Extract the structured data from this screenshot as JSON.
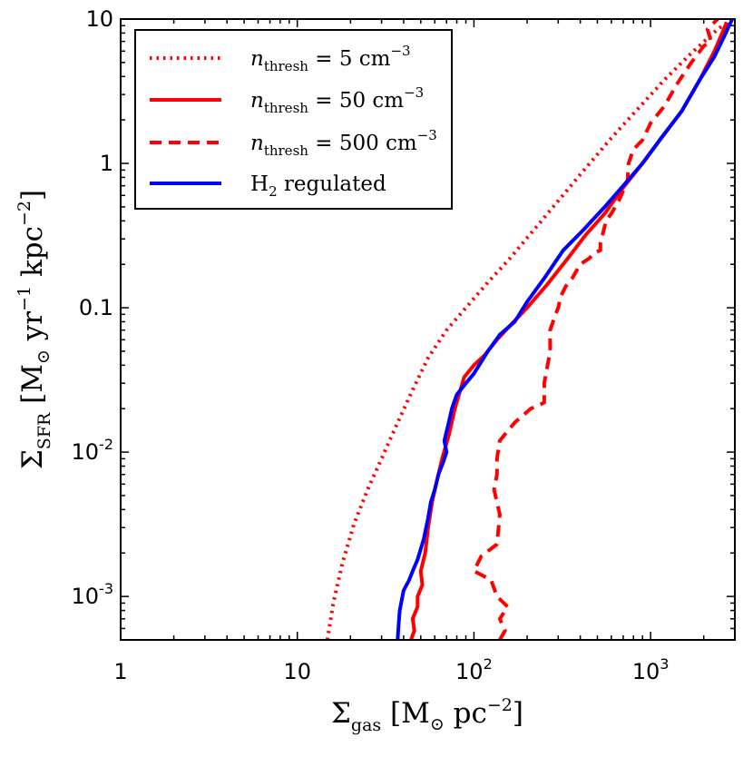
{
  "chart_data": {
    "type": "line",
    "title": "",
    "xscale": "log",
    "yscale": "log",
    "xlim": [
      1,
      3000
    ],
    "ylim": [
      0.0005,
      10
    ],
    "xlabel": {
      "symbol": "Σ",
      "sub": "gas",
      "unit": "[M",
      "sun": "⊙",
      "unit2": " pc",
      "exp": "−2",
      "close": "]"
    },
    "ylabel": {
      "symbol": "Σ",
      "sub": "SFR",
      "unit": "[M",
      "sun": "⊙",
      "unit2": " yr",
      "exp1": "−1",
      "unit3": " kpc",
      "exp2": "−2",
      "close": "]"
    },
    "xticks": [
      {
        "value": 1,
        "label": "1"
      },
      {
        "value": 10,
        "label": "10"
      },
      {
        "value": 100,
        "base": "10",
        "exp": "2"
      },
      {
        "value": 1000,
        "base": "10",
        "exp": "3"
      }
    ],
    "yticks": [
      {
        "value": 0.001,
        "base": "10",
        "exp": "-3"
      },
      {
        "value": 0.01,
        "base": "10",
        "exp": "-2"
      },
      {
        "value": 0.1,
        "label": "0.1"
      },
      {
        "value": 1,
        "label": "1"
      },
      {
        "value": 10,
        "label": "10"
      }
    ],
    "legend_position": "top-left",
    "series": [
      {
        "name": "n_thresh = 5 cm^-3",
        "legend": {
          "n": "n",
          "sub": "thresh",
          "eq": " = 5 cm",
          "exp": "−3"
        },
        "color": "#ff0000",
        "style": "dotted",
        "x": [
          14.8,
          16.0,
          18.0,
          21.0,
          25.0,
          30.0,
          37.0,
          45.0,
          55.0,
          70.0,
          90.0,
          120.0,
          160.0,
          220.0,
          300.0,
          420.0,
          600.0,
          850.0,
          1200.0,
          1700.0,
          2400.0,
          2900.0
        ],
        "y": [
          0.0005,
          0.0009,
          0.0017,
          0.0032,
          0.0055,
          0.009,
          0.016,
          0.027,
          0.045,
          0.07,
          0.1,
          0.15,
          0.22,
          0.35,
          0.55,
          0.9,
          1.5,
          2.4,
          3.8,
          5.8,
          8.5,
          10.0
        ]
      },
      {
        "name": "n_thresh = 50 cm^-3",
        "legend": {
          "n": "n",
          "sub": "thresh",
          "eq": " = 50 cm",
          "exp": "−3"
        },
        "color": "#ff0000",
        "style": "solid",
        "x": [
          44.0,
          46.0,
          45.0,
          48.0,
          48.0,
          51.0,
          50.0,
          53.0,
          55.0,
          58.0,
          62.0,
          66.0,
          72.0,
          78.0,
          88.0,
          100.0,
          115.0,
          135.0,
          160.0,
          200.0,
          260.0,
          340.0,
          430.0,
          550.0,
          700.0,
          900.0,
          1150.0,
          1500.0,
          1900.0,
          2300.0,
          2700.0
        ],
        "y": [
          0.0005,
          0.00058,
          0.0007,
          0.00085,
          0.001,
          0.0012,
          0.0015,
          0.002,
          0.003,
          0.0045,
          0.0065,
          0.009,
          0.013,
          0.02,
          0.033,
          0.04,
          0.047,
          0.06,
          0.075,
          0.1,
          0.145,
          0.22,
          0.32,
          0.45,
          0.68,
          1.0,
          1.5,
          2.3,
          3.8,
          6.0,
          9.5
        ]
      },
      {
        "name": "n_thresh = 500 cm^-3",
        "legend": {
          "n": "n",
          "sub": "thresh",
          "eq": " = 500 cm",
          "exp": "−3"
        },
        "color": "#ff0000",
        "style": "dashed",
        "x": [
          140.0,
          150.0,
          140.0,
          155.0,
          135.0,
          125.0,
          100.0,
          110.0,
          135.0,
          140.0,
          130.0,
          135.0,
          135.0,
          140.0,
          170.0,
          210.0,
          250.0,
          250.0,
          270.0,
          270.0,
          290.0,
          300.0,
          310.0,
          330.0,
          360.0,
          400.0,
          450.0,
          480.0,
          520.0,
          520.0,
          560.0,
          600.0,
          660.0,
          740.0,
          750.0,
          800.0,
          900.0,
          1000.0,
          1200.0,
          1400.0,
          1700.0,
          2000.0,
          2200.0,
          2100.0,
          2400.0
        ],
        "y": [
          0.0005,
          0.00058,
          0.0007,
          0.00085,
          0.001,
          0.0013,
          0.0015,
          0.0019,
          0.0023,
          0.0037,
          0.0055,
          0.007,
          0.009,
          0.012,
          0.016,
          0.02,
          0.022,
          0.03,
          0.05,
          0.07,
          0.09,
          0.1,
          0.12,
          0.14,
          0.16,
          0.2,
          0.22,
          0.24,
          0.25,
          0.28,
          0.4,
          0.45,
          0.55,
          0.75,
          1.0,
          1.25,
          1.45,
          1.9,
          2.5,
          3.5,
          5.0,
          6.5,
          7.0,
          8.5,
          10.0
        ]
      },
      {
        "name": "H2 regulated",
        "legend": {
          "main": "H",
          "sub": "2",
          "rest": " regulated"
        },
        "color": "#0000ff",
        "style": "solid",
        "x": [
          37.0,
          37.5,
          38.0,
          40.0,
          43.0,
          45.0,
          48.0,
          52.0,
          55.0,
          57.0,
          60.0,
          63.0,
          67.0,
          70.0,
          68.0,
          72.0,
          75.0,
          80.0,
          90.0,
          100.0,
          120.0,
          140.0,
          170.0,
          200.0,
          250.0,
          320.0,
          420.0,
          550.0,
          700.0,
          900.0,
          1150.0,
          1500.0,
          1900.0,
          2300.0,
          2600.0,
          2900.0
        ],
        "y": [
          0.0005,
          0.00065,
          0.0008,
          0.0011,
          0.0013,
          0.0015,
          0.0018,
          0.0025,
          0.0035,
          0.0045,
          0.0055,
          0.007,
          0.0085,
          0.01,
          0.012,
          0.016,
          0.02,
          0.025,
          0.03,
          0.035,
          0.05,
          0.065,
          0.08,
          0.11,
          0.16,
          0.25,
          0.35,
          0.5,
          0.7,
          1.0,
          1.5,
          2.3,
          3.8,
          5.5,
          7.5,
          10.0
        ]
      }
    ]
  }
}
